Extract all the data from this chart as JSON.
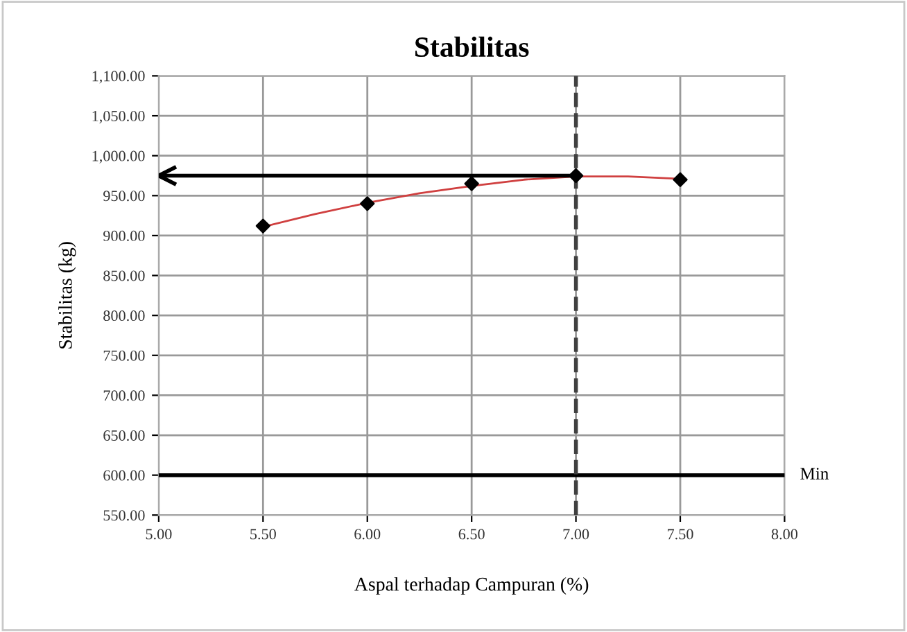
{
  "chart_data": {
    "type": "scatter",
    "title": "Stabilitas",
    "xlabel": "Aspal terhadap Campuran (%)",
    "ylabel": "Stabilitas (kg)",
    "series": [
      {
        "color": "#000000",
        "marker": "diamond",
        "x": [
          5.5,
          6.0,
          6.5,
          7.0,
          7.5
        ],
        "values": [
          912,
          940,
          965,
          975,
          970
        ]
      },
      {
        "type": "line",
        "color": "#d04040",
        "marker": "none",
        "line_style": "solid",
        "x": [
          5.5,
          5.75,
          6.0,
          6.25,
          6.5,
          6.75,
          7.0,
          7.25,
          7.5
        ],
        "values": [
          911,
          927,
          941,
          953,
          962,
          970,
          974,
          974,
          971
        ]
      }
    ],
    "xlim": [
      5.0,
      8.0
    ],
    "xticks": [
      {
        "value": 5.0,
        "label": "5.00"
      },
      {
        "value": 5.5,
        "label": "5.50"
      },
      {
        "value": 6.0,
        "label": "6.00"
      },
      {
        "value": 6.5,
        "label": "6.50"
      },
      {
        "value": 7.0,
        "label": "7.00"
      },
      {
        "value": 7.5,
        "label": "7.50"
      },
      {
        "value": 8.0,
        "label": "8.00"
      }
    ],
    "ylim": [
      550,
      1100
    ],
    "yticks": [
      {
        "value": 550,
        "label": "550.00"
      },
      {
        "value": 600,
        "label": "600.00"
      },
      {
        "value": 650,
        "label": "650.00"
      },
      {
        "value": 700,
        "label": "700.00"
      },
      {
        "value": 750,
        "label": "750.00"
      },
      {
        "value": 800,
        "label": "800.00"
      },
      {
        "value": 850,
        "label": "850.00"
      },
      {
        "value": 900,
        "label": "900.00"
      },
      {
        "value": 950,
        "label": "950.00"
      },
      {
        "value": 1000,
        "label": "1,000.00"
      },
      {
        "value": 1050,
        "label": "1,050.00"
      },
      {
        "value": 1100,
        "label": "1,100.00"
      }
    ],
    "grid": true,
    "ref_lines": [
      {
        "axis": "y",
        "value": 600,
        "label": "Min",
        "color": "#000000",
        "line_style": "solid"
      },
      {
        "axis": "x",
        "value": 7.0,
        "color": "#404040",
        "line_style": "dashed"
      },
      {
        "axis": "y",
        "value": 975,
        "color": "#000000",
        "line_style": "solid"
      }
    ]
  }
}
